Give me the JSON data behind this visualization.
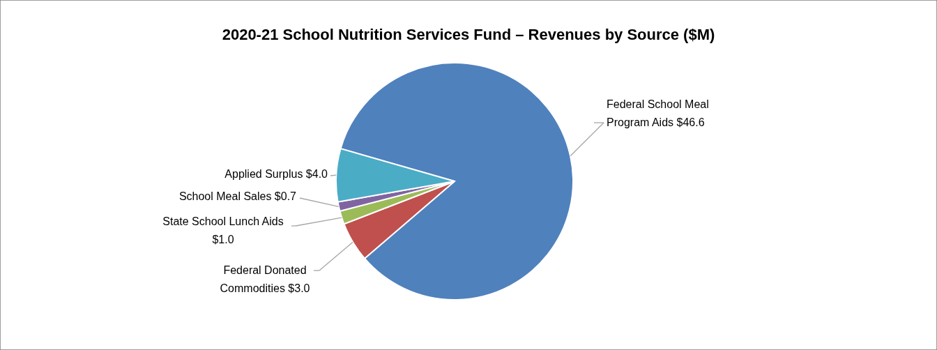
{
  "chart_data": {
    "type": "pie",
    "title": "2020-21 School Nutrition Services Fund – Revenues by Source ($M)",
    "categories": [
      "Federal School Meal Program Aids",
      "Federal Donated Commodities",
      "State School Lunch Aids",
      "School Meal Sales",
      "Applied Surplus"
    ],
    "values": [
      46.6,
      3.0,
      1.0,
      0.7,
      4.0
    ],
    "value_labels": [
      "$46.6",
      "$3.0",
      "$1.0",
      "$0.7",
      "$4.0"
    ],
    "colors": [
      "#4f81bd",
      "#c0504d",
      "#9bbb59",
      "#8064a2",
      "#4bacc6"
    ]
  }
}
